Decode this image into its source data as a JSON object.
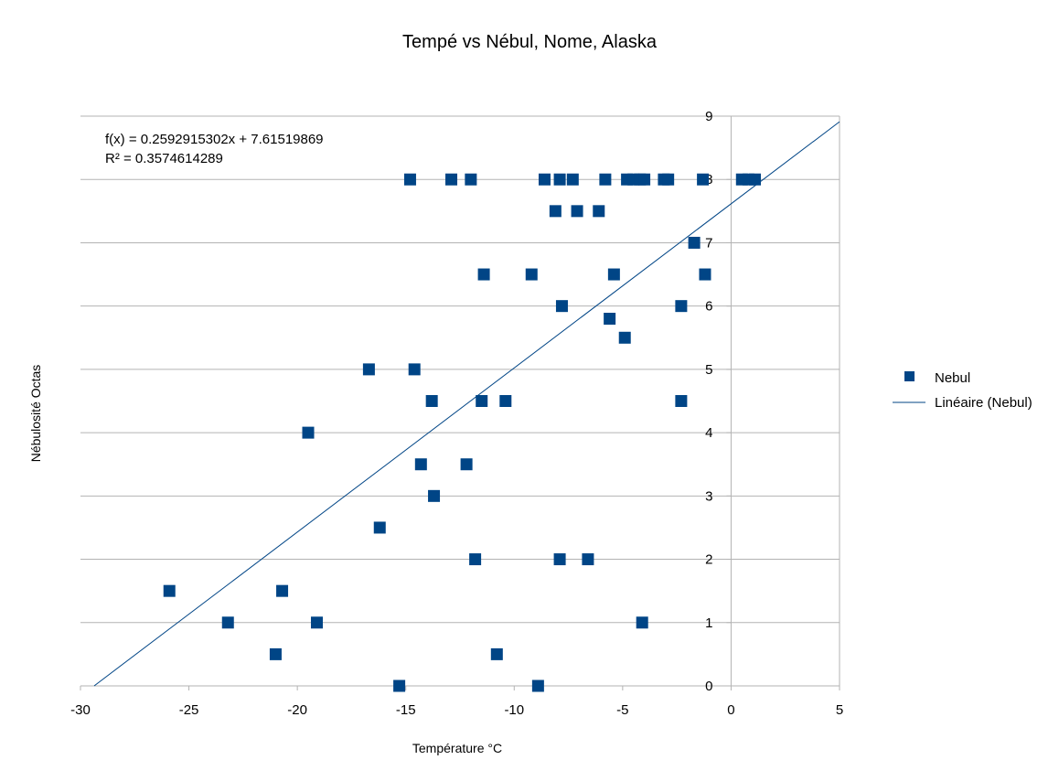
{
  "chart_data": {
    "type": "scatter",
    "title": "Tempé vs Nébul, Nome, Alaska",
    "xlabel": "Température °C",
    "ylabel": "Nébulosité Octas",
    "xlim": [
      -30,
      5
    ],
    "ylim": [
      0,
      9
    ],
    "xticks": [
      -30,
      -25,
      -20,
      -15,
      -10,
      -5,
      0,
      5
    ],
    "yticks": [
      0,
      1,
      2,
      3,
      4,
      5,
      6,
      7,
      8,
      9
    ],
    "grid": "horizontal major gridlines",
    "legend_position": "right",
    "series": [
      {
        "name": "Nebul",
        "marker": "square",
        "color": "#004586",
        "points": [
          [
            -14.8,
            8
          ],
          [
            -12.9,
            8
          ],
          [
            -12.0,
            8
          ],
          [
            -8.6,
            8
          ],
          [
            -7.9,
            8
          ],
          [
            -7.3,
            8
          ],
          [
            -5.8,
            8
          ],
          [
            -4.8,
            8
          ],
          [
            -4.5,
            8
          ],
          [
            -4.2,
            8
          ],
          [
            -4.0,
            8
          ],
          [
            -3.1,
            8
          ],
          [
            -2.9,
            8
          ],
          [
            -1.3,
            8
          ],
          [
            0.5,
            8
          ],
          [
            0.8,
            8
          ],
          [
            1.1,
            8
          ],
          [
            -8.1,
            7.5
          ],
          [
            -7.1,
            7.5
          ],
          [
            -6.1,
            7.5
          ],
          [
            -1.7,
            7
          ],
          [
            -11.4,
            6.5
          ],
          [
            -9.2,
            6.5
          ],
          [
            -5.4,
            6.5
          ],
          [
            -1.2,
            6.5
          ],
          [
            -7.8,
            6
          ],
          [
            -2.3,
            6
          ],
          [
            -5.6,
            5.8
          ],
          [
            -4.9,
            5.5
          ],
          [
            -16.7,
            5
          ],
          [
            -14.6,
            5
          ],
          [
            -13.8,
            4.5
          ],
          [
            -11.5,
            4.5
          ],
          [
            -10.4,
            4.5
          ],
          [
            -2.3,
            4.5
          ],
          [
            -19.5,
            4
          ],
          [
            -14.3,
            3.5
          ],
          [
            -12.2,
            3.5
          ],
          [
            -13.7,
            3
          ],
          [
            -16.2,
            2.5
          ],
          [
            -11.8,
            2
          ],
          [
            -7.9,
            2
          ],
          [
            -6.6,
            2
          ],
          [
            -25.9,
            1.5
          ],
          [
            -20.7,
            1.5
          ],
          [
            -23.2,
            1
          ],
          [
            -19.1,
            1
          ],
          [
            -4.1,
            1
          ],
          [
            -21.0,
            0.5
          ],
          [
            -10.8,
            0.5
          ],
          [
            -15.3,
            0
          ],
          [
            -8.9,
            0
          ]
        ]
      },
      {
        "name": "Linéaire (Nebul)",
        "type": "linear-trendline",
        "color": "#004586",
        "slope": 0.2592915302,
        "intercept": 7.61519869
      }
    ],
    "annotations": {
      "equation": "f(x) = 0.2592915302x + 7.61519869",
      "r_squared": "R² = 0.3574614289"
    }
  }
}
